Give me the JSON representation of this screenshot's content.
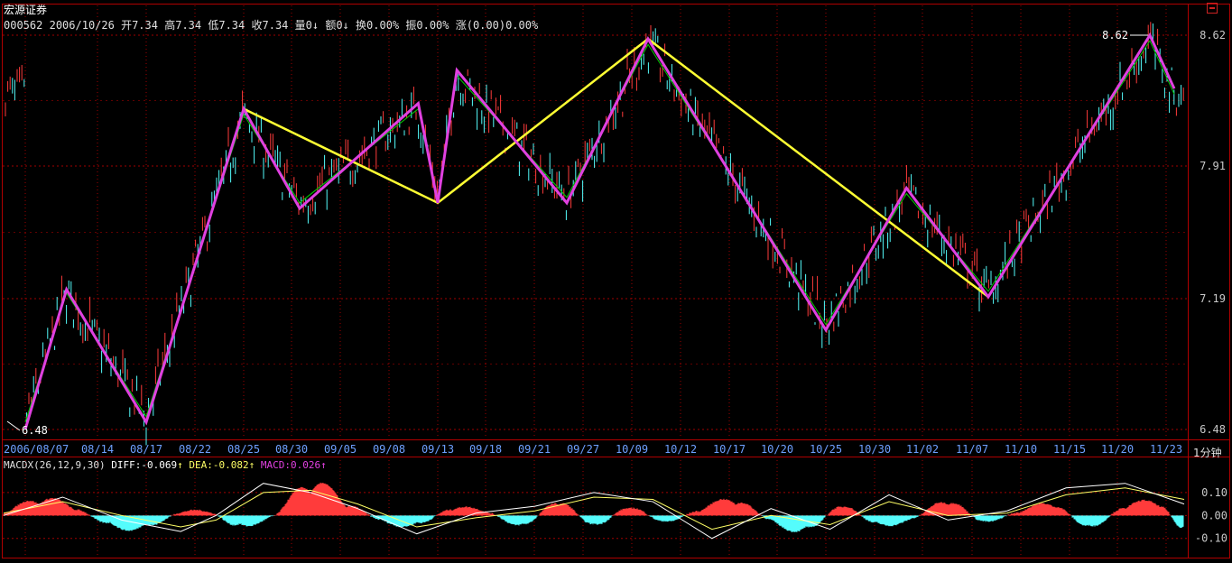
{
  "header": {
    "title": "宏源证券",
    "quote": {
      "code": "000562",
      "date": "2006/10/26",
      "items": [
        "开7.34",
        "高7.34",
        "低7.34",
        "收7.34",
        "量0↓",
        "额0↓",
        "换0.00%",
        "振0.00%",
        "涨(0.00)0.00%"
      ]
    },
    "minimize_icon": "minimize-icon"
  },
  "period_label": "1分钟",
  "colors": {
    "up": "#ff3b3b",
    "down": "#54fcfc",
    "zigzag_short": "#e040e0",
    "zigzag_long": "#ffff33",
    "ma_line": "#00cc00",
    "diff_line": "#ffffff",
    "dea_line": "#ffff66",
    "grid": "#a00000",
    "axis_text": "#c8c8c8"
  },
  "chart_data": [
    {
      "type": "line",
      "title": "",
      "price_ticks": [
        "8.62",
        "7.91",
        "7.19",
        "6.48"
      ],
      "ylim": [
        6.48,
        8.62
      ],
      "annotations": [
        {
          "label": "8.62",
          "kind": "period-high"
        },
        {
          "label": "6.48",
          "kind": "period-low"
        }
      ],
      "x_tick_labels": [
        "2006/08/07",
        "08/14",
        "08/17",
        "08/22",
        "08/25",
        "08/30",
        "09/05",
        "09/08",
        "09/13",
        "09/18",
        "09/21",
        "09/27",
        "10/09",
        "10/12",
        "10/17",
        "10/20",
        "10/25",
        "10/30",
        "11/02",
        "11/07",
        "11/10",
        "11/15",
        "11/20",
        "11/23"
      ],
      "zigzag_short": {
        "x": [
          "2006/08/07",
          "08/11",
          "08/17",
          "08/25",
          "08/31",
          "09/11",
          "09/13",
          "09/15",
          "09/25",
          "10/10",
          "10/25",
          "11/01",
          "11/08",
          "11/22",
          "11/24"
        ],
        "y": [
          6.48,
          7.24,
          6.52,
          8.22,
          7.68,
          8.25,
          7.71,
          8.43,
          7.71,
          8.6,
          7.02,
          7.79,
          7.2,
          8.62,
          8.33
        ]
      },
      "zigzag_long": {
        "x": [
          "08/25",
          "09/13",
          "10/10",
          "11/08"
        ],
        "y": [
          8.22,
          7.71,
          8.6,
          7.2
        ]
      },
      "guide_line": {
        "x": [
          "2006/08/07",
          "08/11",
          "08/17",
          "08/25",
          "08/31",
          "09/11",
          "09/13",
          "09/15",
          "09/25",
          "10/10",
          "10/25",
          "11/01",
          "11/08",
          "11/22",
          "11/24"
        ],
        "y": [
          6.52,
          7.22,
          6.55,
          8.19,
          7.71,
          8.22,
          7.74,
          8.4,
          7.74,
          8.57,
          7.05,
          7.76,
          7.23,
          8.59,
          8.3
        ]
      }
    },
    {
      "type": "area",
      "title": "MACDX(26,12,9,30)",
      "legend": [
        {
          "label": "DIFF:",
          "value": "-0.069",
          "arrow": "↑"
        },
        {
          "label": "DEA:",
          "value": "-0.082",
          "arrow": "↑"
        },
        {
          "label": "MACD:",
          "value": "0.026",
          "arrow": "↑"
        }
      ],
      "y_ticks": [
        "0.10",
        "0.00",
        "-0.10"
      ],
      "ylim": [
        -0.16,
        0.19
      ],
      "macd_bars": {
        "x": [
          0,
          0.03,
          0.06,
          0.09,
          0.12,
          0.15,
          0.175,
          0.2,
          0.23,
          0.26,
          0.29,
          0.32,
          0.35,
          0.38,
          0.41,
          0.44,
          0.47,
          0.5,
          0.53,
          0.56,
          0.59,
          0.62,
          0.65,
          0.68,
          0.71,
          0.74,
          0.77,
          0.8,
          0.83,
          0.86,
          0.89,
          0.92,
          0.95,
          0.98,
          1.0
        ],
        "y": [
          0.01,
          0.08,
          0.04,
          -0.05,
          -0.06,
          0.02,
          0.02,
          -0.06,
          0.0,
          0.16,
          0.06,
          -0.03,
          -0.05,
          0.04,
          0.02,
          -0.06,
          0.08,
          -0.06,
          0.05,
          -0.04,
          0.03,
          0.08,
          -0.03,
          -0.08,
          0.06,
          -0.05,
          -0.02,
          0.08,
          -0.04,
          0.02,
          0.06,
          -0.07,
          0.05,
          0.06,
          -0.08
        ]
      },
      "diff_line": {
        "x": [
          0,
          0.05,
          0.1,
          0.15,
          0.18,
          0.22,
          0.26,
          0.3,
          0.35,
          0.4,
          0.45,
          0.5,
          0.55,
          0.6,
          0.65,
          0.7,
          0.75,
          0.8,
          0.85,
          0.9,
          0.95,
          1.0
        ],
        "y": [
          0.0,
          0.08,
          -0.02,
          -0.07,
          0.0,
          0.14,
          0.1,
          0.03,
          -0.08,
          0.01,
          0.04,
          0.1,
          0.06,
          -0.1,
          0.03,
          -0.06,
          0.09,
          -0.02,
          0.02,
          0.12,
          0.14,
          0.05
        ]
      },
      "dea_line": {
        "x": [
          0,
          0.05,
          0.1,
          0.15,
          0.18,
          0.22,
          0.26,
          0.3,
          0.35,
          0.4,
          0.45,
          0.5,
          0.55,
          0.6,
          0.65,
          0.7,
          0.75,
          0.8,
          0.85,
          0.9,
          0.95,
          1.0
        ],
        "y": [
          0.01,
          0.06,
          0.0,
          -0.05,
          -0.02,
          0.1,
          0.11,
          0.05,
          -0.05,
          -0.01,
          0.02,
          0.08,
          0.07,
          -0.06,
          0.0,
          -0.04,
          0.06,
          0.0,
          0.01,
          0.09,
          0.12,
          0.07
        ]
      }
    }
  ]
}
